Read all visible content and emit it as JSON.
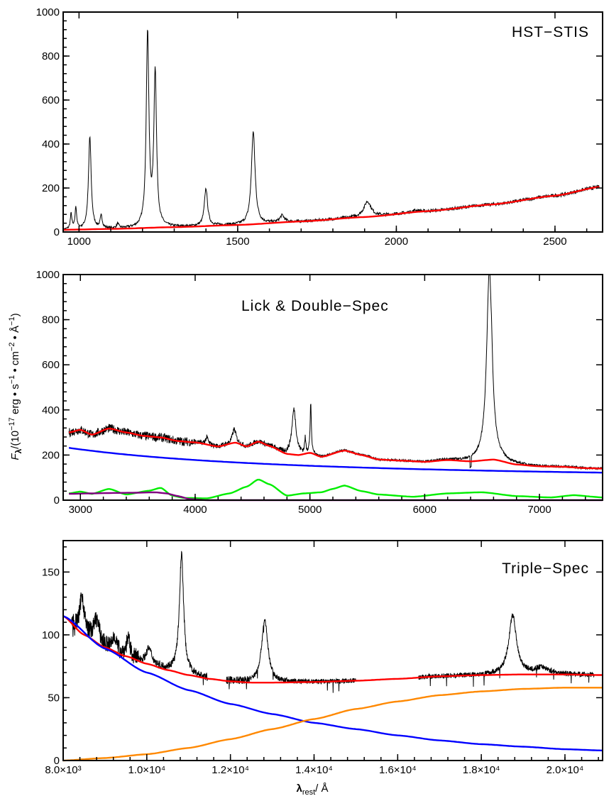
{
  "y_axis_label": {
    "main": "F",
    "sub": "λ",
    "rest": "/(10",
    "exp1": "−17",
    "unit1": " erg • s",
    "exp2": "−1",
    "unit2": " • cm",
    "exp3": "−2",
    "unit3": " • Å",
    "exp4": "−1",
    "close": ")"
  },
  "x_axis_label": {
    "main": "λ",
    "sub": "rest",
    "rest": "/ Å"
  },
  "chart_data": [
    {
      "type": "line",
      "title": "HST−STIS",
      "xlim": [
        950,
        2650
      ],
      "ylim": [
        0,
        1000
      ],
      "x_ticks": [
        1000,
        1500,
        2000,
        2500
      ],
      "x_tick_labels": [
        "1000",
        "1500",
        "2000",
        "2500"
      ],
      "y_ticks": [
        0,
        200,
        400,
        600,
        800,
        1000
      ],
      "y_tick_labels": [
        "0",
        "200",
        "400",
        "600",
        "800",
        "1000"
      ],
      "x_range": [
        950,
        2640
      ],
      "continuum_points": [
        [
          950,
          10
        ],
        [
          1100,
          14
        ],
        [
          1300,
          22
        ],
        [
          1500,
          32
        ],
        [
          1700,
          48
        ],
        [
          1900,
          68
        ],
        [
          2100,
          95
        ],
        [
          2300,
          125
        ],
        [
          2500,
          165
        ],
        [
          2640,
          205
        ]
      ],
      "emission_lines": [
        {
          "center": 975,
          "peak": 70,
          "width": 3
        },
        {
          "center": 990,
          "peak": 100,
          "width": 3
        },
        {
          "center": 1034,
          "peak": 420,
          "width": 5
        },
        {
          "center": 1070,
          "peak": 55,
          "width": 4
        },
        {
          "center": 1122,
          "peak": 20,
          "width": 4
        },
        {
          "center": 1216,
          "peak": 880,
          "width": 5
        },
        {
          "center": 1240,
          "peak": 700,
          "width": 5
        },
        {
          "center": 1400,
          "peak": 170,
          "width": 6
        },
        {
          "center": 1549,
          "peak": 420,
          "width": 7
        },
        {
          "center": 1640,
          "peak": 30,
          "width": 8
        },
        {
          "center": 1909,
          "peak": 70,
          "width": 14
        },
        {
          "center": 2060,
          "peak": 8,
          "width": 12
        }
      ],
      "series": [
        {
          "color": "#000000",
          "role": "observed spectrum"
        },
        {
          "color": "#ff0000",
          "role": "continuum fit"
        }
      ]
    },
    {
      "type": "line",
      "title": "Lick & Double−Spec",
      "xlim": [
        2850,
        7550
      ],
      "ylim": [
        0,
        1000
      ],
      "x_ticks": [
        3000,
        4000,
        5000,
        6000,
        7000
      ],
      "x_tick_labels": [
        "3000",
        "4000",
        "5000",
        "6000",
        "7000"
      ],
      "y_ticks": [
        0,
        200,
        400,
        600,
        800,
        1000
      ],
      "y_tick_labels": [
        "0",
        "200",
        "400",
        "600",
        "800",
        "1000"
      ],
      "x_range": [
        2900,
        7550
      ],
      "power_law": {
        "norm_x": 2900,
        "norm_y": 232,
        "end_y": 122
      },
      "host_points": [
        [
          2900,
          30
        ],
        [
          3000,
          38
        ],
        [
          3100,
          28
        ],
        [
          3250,
          50
        ],
        [
          3400,
          25
        ],
        [
          3600,
          42
        ],
        [
          3700,
          55
        ],
        [
          3800,
          20
        ],
        [
          3900,
          10
        ],
        [
          4100,
          8
        ],
        [
          4300,
          30
        ],
        [
          4450,
          60
        ],
        [
          4550,
          92
        ],
        [
          4650,
          70
        ],
        [
          4800,
          20
        ],
        [
          4950,
          30
        ],
        [
          5100,
          35
        ],
        [
          5200,
          50
        ],
        [
          5300,
          65
        ],
        [
          5450,
          40
        ],
        [
          5600,
          25
        ],
        [
          5900,
          15
        ],
        [
          6200,
          30
        ],
        [
          6500,
          35
        ],
        [
          6800,
          18
        ],
        [
          7100,
          12
        ],
        [
          7300,
          22
        ],
        [
          7550,
          12
        ]
      ],
      "feii_points": [
        [
          2900,
          28
        ],
        [
          3100,
          30
        ],
        [
          3300,
          32
        ],
        [
          3500,
          33
        ],
        [
          3650,
          35
        ],
        [
          3750,
          30
        ],
        [
          3850,
          18
        ],
        [
          3950,
          5
        ],
        [
          4100,
          0
        ],
        [
          7550,
          0
        ]
      ],
      "model_points": [
        [
          2900,
          300
        ],
        [
          3000,
          312
        ],
        [
          3100,
          290
        ],
        [
          3250,
          318
        ],
        [
          3400,
          300
        ],
        [
          3550,
          285
        ],
        [
          3700,
          278
        ],
        [
          3850,
          262
        ],
        [
          4000,
          256
        ],
        [
          4200,
          238
        ],
        [
          4350,
          255
        ],
        [
          4450,
          238
        ],
        [
          4550,
          260
        ],
        [
          4650,
          240
        ],
        [
          4800,
          205
        ],
        [
          4900,
          200
        ],
        [
          5000,
          210
        ],
        [
          5100,
          192
        ],
        [
          5300,
          220
        ],
        [
          5450,
          200
        ],
        [
          5600,
          180
        ],
        [
          5800,
          175
        ],
        [
          6000,
          170
        ],
        [
          6200,
          178
        ],
        [
          6400,
          172
        ],
        [
          6600,
          180
        ],
        [
          6800,
          158
        ],
        [
          7000,
          150
        ],
        [
          7200,
          148
        ],
        [
          7400,
          142
        ],
        [
          7550,
          140
        ]
      ],
      "emission_lines": [
        {
          "center": 4102,
          "peak": 30,
          "width": 15
        },
        {
          "center": 4340,
          "peak": 60,
          "width": 18
        },
        {
          "center": 4861,
          "peak": 200,
          "width": 22
        },
        {
          "center": 4959,
          "peak": 60,
          "width": 6
        },
        {
          "center": 5007,
          "peak": 220,
          "width": 6
        },
        {
          "center": 6563,
          "peak": 830,
          "width": 28
        },
        {
          "center": 6584,
          "peak": 60,
          "width": 10
        }
      ],
      "series": [
        {
          "color": "#000000",
          "role": "observed spectrum"
        },
        {
          "color": "#ff0000",
          "role": "total model"
        },
        {
          "color": "#0000ff",
          "role": "power-law continuum"
        },
        {
          "color": "#00ee00",
          "role": "host galaxy"
        },
        {
          "color": "#800080",
          "role": "Fe II"
        }
      ]
    },
    {
      "type": "line",
      "title": "Triple−Spec",
      "xlim": [
        8000,
        20900
      ],
      "ylim": [
        0,
        175
      ],
      "x_ticks": [
        8000,
        10000,
        12000,
        14000,
        16000,
        18000,
        20000
      ],
      "x_tick_labels": [
        "8.0×10³",
        "1.0×10⁴",
        "1.2×10⁴",
        "1.4×10⁴",
        "1.6×10⁴",
        "1.8×10⁴",
        "2.0×10⁴"
      ],
      "y_ticks": [
        0,
        50,
        100,
        150
      ],
      "y_tick_labels": [
        "0",
        "50",
        "100",
        "150"
      ],
      "observed_segments": [
        [
          8200,
          11450
        ],
        [
          11900,
          15000
        ],
        [
          16500,
          20700
        ]
      ],
      "blue_points": [
        [
          8000,
          115
        ],
        [
          9000,
          89
        ],
        [
          10000,
          70
        ],
        [
          11000,
          56
        ],
        [
          12000,
          45
        ],
        [
          13000,
          37
        ],
        [
          14000,
          30
        ],
        [
          15000,
          25
        ],
        [
          16000,
          20
        ],
        [
          17000,
          16
        ],
        [
          18000,
          13
        ],
        [
          19000,
          11
        ],
        [
          20000,
          9
        ],
        [
          20900,
          8
        ]
      ],
      "orange_points": [
        [
          8000,
          0
        ],
        [
          9000,
          2
        ],
        [
          10000,
          5
        ],
        [
          11000,
          10
        ],
        [
          12000,
          17
        ],
        [
          13000,
          25
        ],
        [
          14000,
          33
        ],
        [
          15000,
          41
        ],
        [
          16000,
          47
        ],
        [
          17000,
          52
        ],
        [
          18000,
          55
        ],
        [
          19000,
          57
        ],
        [
          20000,
          58
        ],
        [
          20900,
          58
        ]
      ],
      "model_points": [
        [
          8000,
          115
        ],
        [
          8500,
          100
        ],
        [
          9000,
          90
        ],
        [
          9500,
          83
        ],
        [
          10000,
          77
        ],
        [
          10500,
          72
        ],
        [
          11000,
          68
        ],
        [
          11500,
          65
        ],
        [
          12000,
          63
        ],
        [
          12500,
          62
        ],
        [
          13000,
          62
        ],
        [
          14000,
          62.5
        ],
        [
          15000,
          63.5
        ],
        [
          16000,
          65
        ],
        [
          17000,
          67
        ],
        [
          18000,
          68
        ],
        [
          19000,
          68.5
        ],
        [
          20000,
          68.5
        ],
        [
          20900,
          68
        ]
      ],
      "emission_lines": [
        {
          "center": 8450,
          "peak": 30,
          "width": 60
        },
        {
          "center": 8800,
          "peak": 18,
          "width": 80
        },
        {
          "center": 9230,
          "peak": 12,
          "width": 50
        },
        {
          "center": 9550,
          "peak": 14,
          "width": 50
        },
        {
          "center": 10050,
          "peak": 12,
          "width": 80
        },
        {
          "center": 10830,
          "peak": 95,
          "width": 60
        },
        {
          "center": 12820,
          "peak": 50,
          "width": 90
        },
        {
          "center": 18750,
          "peak": 47,
          "width": 110
        },
        {
          "center": 19450,
          "peak": 5,
          "width": 200
        }
      ],
      "series": [
        {
          "color": "#000000",
          "role": "observed spectrum"
        },
        {
          "color": "#ff0000",
          "role": "total model"
        },
        {
          "color": "#0000ff",
          "role": "power-law continuum"
        },
        {
          "color": "#ff8800",
          "role": "hot dust"
        }
      ]
    }
  ]
}
